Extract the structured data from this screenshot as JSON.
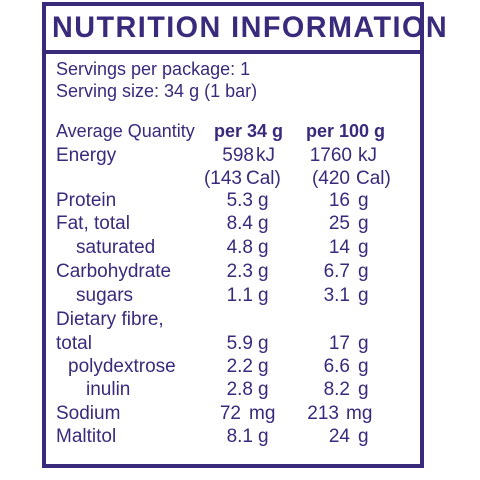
{
  "title": "NUTRITION INFORMATION",
  "servings_per_package": "Servings per package: 1",
  "serving_size": "Serving size: 34 g (1 bar)",
  "columns": {
    "quantity": "Average Quantity",
    "per_serving": "per 34 g",
    "per_100g": "per 100 g"
  },
  "rows": [
    {
      "label": "Energy",
      "v1": "598",
      "u1": "kJ",
      "v2": "1760",
      "u2": "kJ"
    },
    {
      "label": "",
      "v1": "(143",
      "u1": "Cal)",
      "v2": "(420",
      "u2": "Cal)"
    },
    {
      "label": "Protein",
      "v1": "5.3",
      "u1": "g",
      "v2": "16",
      "u2": "g"
    },
    {
      "label": "Fat, total",
      "v1": "8.4",
      "u1": "g",
      "v2": "25",
      "u2": "g"
    },
    {
      "label": "saturated",
      "v1": "4.8",
      "u1": "g",
      "v2": "14",
      "u2": "g"
    },
    {
      "label": "Carbohydrate",
      "v1": "2.3",
      "u1": "g",
      "v2": "6.7",
      "u2": "g"
    },
    {
      "label": "sugars",
      "v1": "1.1",
      "u1": "g",
      "v2": "3.1",
      "u2": "g"
    },
    {
      "label": "Dietary fibre,",
      "v1": "",
      "u1": "",
      "v2": "",
      "u2": ""
    },
    {
      "label": "total",
      "v1": "5.9",
      "u1": "g",
      "v2": "17",
      "u2": "g"
    },
    {
      "label": "polydextrose",
      "v1": "2.2",
      "u1": "g",
      "v2": "6.6",
      "u2": "g"
    },
    {
      "label": "inulin",
      "v1": "2.8",
      "u1": "g",
      "v2": "8.2",
      "u2": "g"
    },
    {
      "label": "Sodium",
      "v1": "72",
      "u1": "mg",
      "v2": "213",
      "u2": "mg"
    },
    {
      "label": "Maltitol",
      "v1": "8.1",
      "u1": "g",
      "v2": "24",
      "u2": "g"
    }
  ]
}
